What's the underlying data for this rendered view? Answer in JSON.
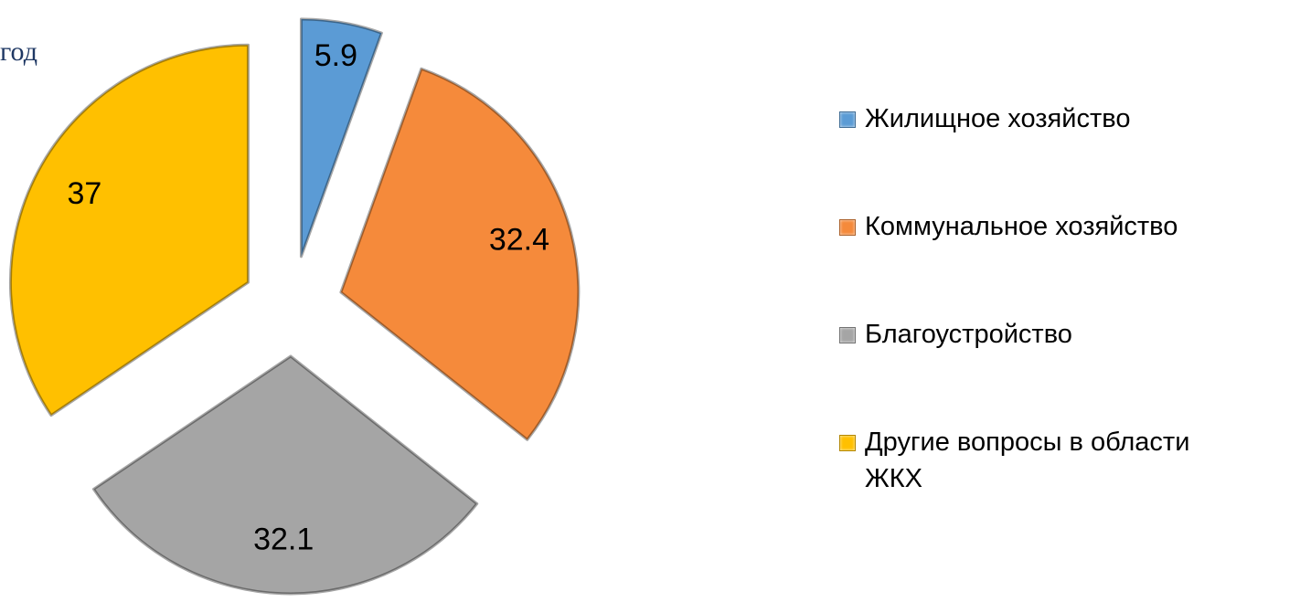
{
  "chart_data": {
    "type": "pie",
    "title": "год",
    "categories": [
      "Жилищное хозяйство",
      "Коммунальное хозяйство",
      "Благоустройство",
      "Другие вопросы в области ЖКХ"
    ],
    "values": [
      5.9,
      32.4,
      32.1,
      37
    ],
    "colors": [
      "#5b9bd5",
      "#f58a3b",
      "#a5a5a5",
      "#ffc000"
    ],
    "legend": "right"
  }
}
